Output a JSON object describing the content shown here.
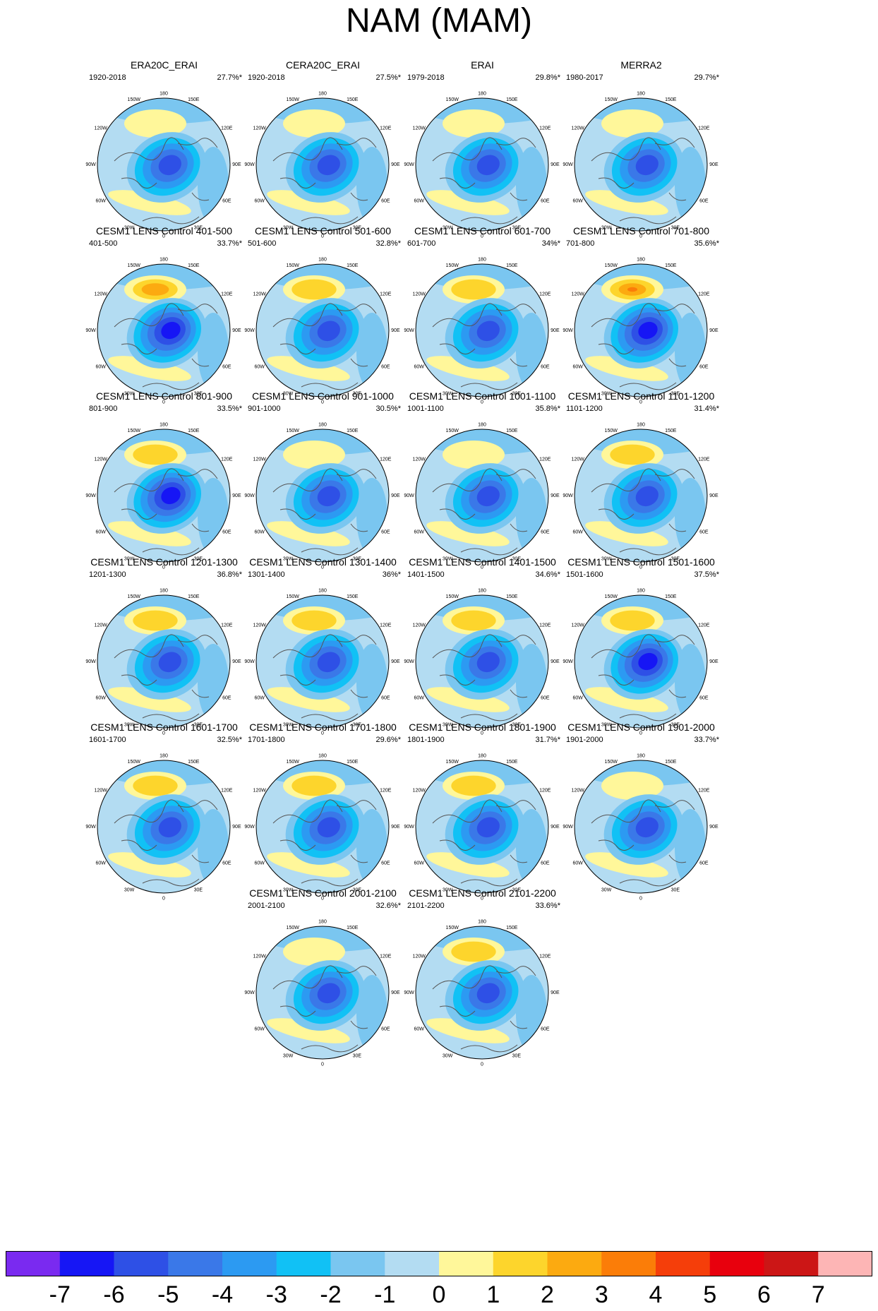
{
  "title": "NAM (MAM)",
  "diagram_type": "grid of north-polar stereographic maps",
  "lon_labels": [
    "180",
    "150W",
    "150E",
    "120W",
    "120E",
    "90W",
    "90E",
    "60W",
    "60E",
    "30W",
    "30E",
    "0"
  ],
  "panels": [
    {
      "title": "ERA20C_ERAI",
      "period": "1920-2018",
      "percent": "27.7%*",
      "pos_max": 1,
      "neg_min": -5
    },
    {
      "title": "CERA20C_ERAI",
      "period": "1920-2018",
      "percent": "27.5%*",
      "pos_max": 1,
      "neg_min": -5
    },
    {
      "title": "ERAI",
      "period": "1979-2018",
      "percent": "29.8%*",
      "pos_max": 1,
      "neg_min": -5
    },
    {
      "title": "MERRA2",
      "period": "1980-2017",
      "percent": "29.7%*",
      "pos_max": 1,
      "neg_min": -5
    },
    {
      "title": "CESM1 LENS Control 401-500",
      "period": "401-500",
      "percent": "33.7%*",
      "pos_max": 3,
      "neg_min": -6
    },
    {
      "title": "CESM1 LENS Control 501-600",
      "period": "501-600",
      "percent": "32.8%*",
      "pos_max": 2,
      "neg_min": -5
    },
    {
      "title": "CESM1 LENS Control 601-700",
      "period": "601-700",
      "percent": "34%*",
      "pos_max": 2,
      "neg_min": -5
    },
    {
      "title": "CESM1 LENS Control 701-800",
      "period": "701-800",
      "percent": "35.6%*",
      "pos_max": 4,
      "neg_min": -6
    },
    {
      "title": "CESM1 LENS Control 801-900",
      "period": "801-900",
      "percent": "33.5%*",
      "pos_max": 2,
      "neg_min": -6
    },
    {
      "title": "CESM1 LENS Control 901-1000",
      "period": "901-1000",
      "percent": "30.5%*",
      "pos_max": 1,
      "neg_min": -5
    },
    {
      "title": "CESM1 LENS Control 1001-1100",
      "period": "1001-1100",
      "percent": "35.8%*",
      "pos_max": 1,
      "neg_min": -5
    },
    {
      "title": "CESM1 LENS Control 1101-1200",
      "period": "1101-1200",
      "percent": "31.4%*",
      "pos_max": 2,
      "neg_min": -5
    },
    {
      "title": "CESM1 LENS Control 1201-1300",
      "period": "1201-1300",
      "percent": "36.8%*",
      "pos_max": 2,
      "neg_min": -5
    },
    {
      "title": "CESM1 LENS Control 1301-1400",
      "period": "1301-1400",
      "percent": "36%*",
      "pos_max": 2,
      "neg_min": -5
    },
    {
      "title": "CESM1 LENS Control 1401-1500",
      "period": "1401-1500",
      "percent": "34.6%*",
      "pos_max": 2,
      "neg_min": -5
    },
    {
      "title": "CESM1 LENS Control 1501-1600",
      "period": "1501-1600",
      "percent": "37.5%*",
      "pos_max": 2,
      "neg_min": -6
    },
    {
      "title": "CESM1 LENS Control 1601-1700",
      "period": "1601-1700",
      "percent": "32.5%*",
      "pos_max": 2,
      "neg_min": -5
    },
    {
      "title": "CESM1 LENS Control 1701-1800",
      "period": "1701-1800",
      "percent": "29.6%*",
      "pos_max": 2,
      "neg_min": -5
    },
    {
      "title": "CESM1 LENS Control 1801-1900",
      "period": "1801-1900",
      "percent": "31.7%*",
      "pos_max": 2,
      "neg_min": -5
    },
    {
      "title": "CESM1 LENS Control 1901-2000",
      "period": "1901-2000",
      "percent": "33.7%*",
      "pos_max": 1,
      "neg_min": -5
    },
    {
      "title": "CESM1 LENS Control 2001-2100",
      "period": "2001-2100",
      "percent": "32.6%*",
      "pos_max": 1,
      "neg_min": -5
    },
    {
      "title": "CESM1 LENS Control 2101-2200",
      "period": "2101-2200",
      "percent": "33.6%*",
      "pos_max": 2,
      "neg_min": -5
    }
  ],
  "colorbar": {
    "labels": [
      "-7",
      "-6",
      "-5",
      "-4",
      "-3",
      "-2",
      "-1",
      "0",
      "1",
      "2",
      "3",
      "4",
      "5",
      "6",
      "7"
    ],
    "colors": [
      "#7a2af0",
      "#1616f5",
      "#2e50e6",
      "#3a78e8",
      "#2c9af2",
      "#11c1f5",
      "#7ac6f0",
      "#b3dcf2",
      "#fff79a",
      "#fdd52c",
      "#fcaa10",
      "#fb7d08",
      "#f53e0a",
      "#e8000d",
      "#cc1616",
      "#fdb5b5"
    ]
  }
}
